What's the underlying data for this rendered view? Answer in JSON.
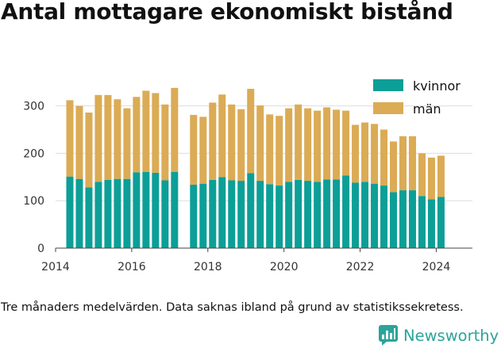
{
  "title": "Antal mottagare ekonomiskt bistånd",
  "caption": "Tre månaders medelvärden. Data saknas ibland på grund av statistikssekretess.",
  "brand": {
    "name": "Newsworthy",
    "icon": "newsworthy-logo-icon"
  },
  "colors": {
    "kvinnor": "#0c9f97",
    "man": "#dbab55",
    "grid": "#dddddd",
    "axis": "#444444"
  },
  "chart_data": {
    "type": "bar",
    "stacked": true,
    "x_start": 2014,
    "x_end": 2024.95,
    "ylim": [
      0,
      360
    ],
    "grid": true,
    "legend_position": "top-right",
    "xticks": [
      "2014",
      "2016",
      "2018",
      "2020",
      "2022",
      "2024"
    ],
    "yticks": [
      "0",
      "100",
      "200",
      "300"
    ],
    "x": [
      2014.375,
      2014.625,
      2014.875,
      2015.125,
      2015.375,
      2015.625,
      2015.875,
      2016.125,
      2016.375,
      2016.625,
      2016.875,
      2017.125,
      2017.625,
      2017.875,
      2018.125,
      2018.375,
      2018.625,
      2018.875,
      2019.125,
      2019.375,
      2019.625,
      2019.875,
      2020.125,
      2020.375,
      2020.625,
      2020.875,
      2021.125,
      2021.375,
      2021.625,
      2021.875,
      2022.125,
      2022.375,
      2022.625,
      2022.875,
      2023.125,
      2023.375,
      2023.625,
      2023.875,
      2024.125
    ],
    "series": [
      {
        "name": "kvinnor",
        "values": [
          151,
          146,
          128,
          140,
          144,
          146,
          146,
          160,
          161,
          159,
          143,
          161,
          134,
          136,
          144,
          150,
          143,
          142,
          158,
          142,
          135,
          132,
          140,
          144,
          142,
          140,
          145,
          145,
          153,
          138,
          140,
          136,
          132,
          118,
          122,
          122,
          110,
          103,
          108
        ]
      },
      {
        "name": "män",
        "values": [
          161,
          154,
          158,
          183,
          179,
          168,
          149,
          159,
          171,
          168,
          160,
          177,
          147,
          141,
          163,
          174,
          160,
          151,
          178,
          159,
          147,
          147,
          155,
          159,
          153,
          150,
          152,
          147,
          137,
          122,
          125,
          126,
          118,
          107,
          114,
          114,
          90,
          88,
          87
        ]
      }
    ]
  }
}
